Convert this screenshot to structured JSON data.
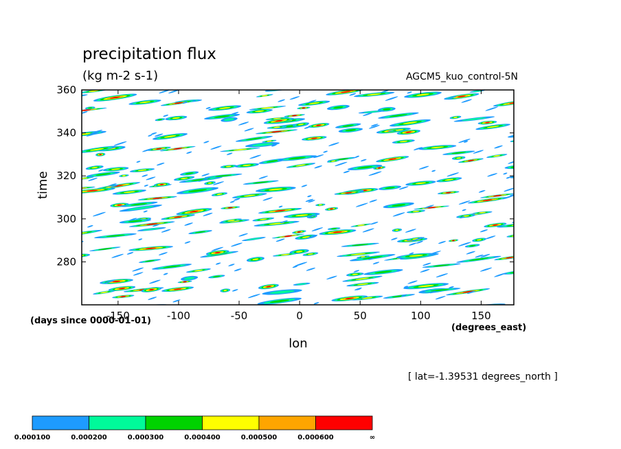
{
  "chart_data": {
    "type": "heatmap",
    "title": "precipitation flux",
    "subtitle": "(kg m-2 s-1)",
    "dataset": "AGCM5_kuo_control-5N",
    "xlabel": "lon",
    "ylabel": "time",
    "x_units": "(degrees_east)",
    "y_units": "(days since 0000-01-01)",
    "annotation": "[ lat=-1.39531 degrees_north ]",
    "xlim": [
      -180,
      177
    ],
    "ylim": [
      260,
      360
    ],
    "x_ticks": [
      -150,
      -100,
      -50,
      0,
      50,
      100,
      150
    ],
    "y_ticks": [
      280,
      300,
      320,
      340,
      360
    ],
    "x_tick_labels": [
      "-150",
      "-100",
      "-50",
      "0",
      "50",
      "100",
      "150"
    ],
    "y_tick_labels": [
      "280",
      "300",
      "320",
      "340",
      "360"
    ],
    "grid": false,
    "colorbar": {
      "levels": [
        0.0001,
        0.0002,
        0.0003,
        0.0004,
        0.0005,
        0.0006
      ],
      "labels": [
        "0.000100",
        "0.000200",
        "0.000300",
        "0.000400",
        "0.000500",
        "0.000600",
        "∞"
      ],
      "colors": [
        "#1e9bff",
        "#00fa9a",
        "#00d200",
        "#ffff00",
        "#ffa500",
        "#ff0000"
      ]
    },
    "pattern": "eastward-propagating precipitation streaks, slope about 15 degrees longitude per day"
  }
}
